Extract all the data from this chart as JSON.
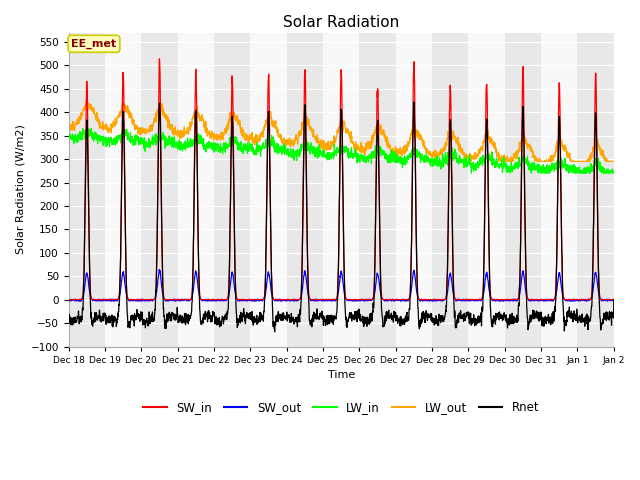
{
  "title": "Solar Radiation",
  "ylabel": "Solar Radiation (W/m2)",
  "xlabel": "Time",
  "annotation": "EE_met",
  "ylim": [
    -100,
    570
  ],
  "yticks": [
    -100,
    -50,
    0,
    50,
    100,
    150,
    200,
    250,
    300,
    350,
    400,
    450,
    500,
    550
  ],
  "n_days": 15,
  "start_day": 18,
  "bg_color": "#e8e8e8",
  "stripe_color": "#f8f8f8",
  "annotation_facecolor": "#ffffc0",
  "annotation_edgecolor": "#cccc00",
  "annotation_textcolor": "#880000",
  "colors": {
    "SW_in": "#ff0000",
    "SW_out": "#0000ff",
    "LW_in": "#00ff00",
    "LW_out": "#ffa500",
    "Rnet": "#000000"
  }
}
